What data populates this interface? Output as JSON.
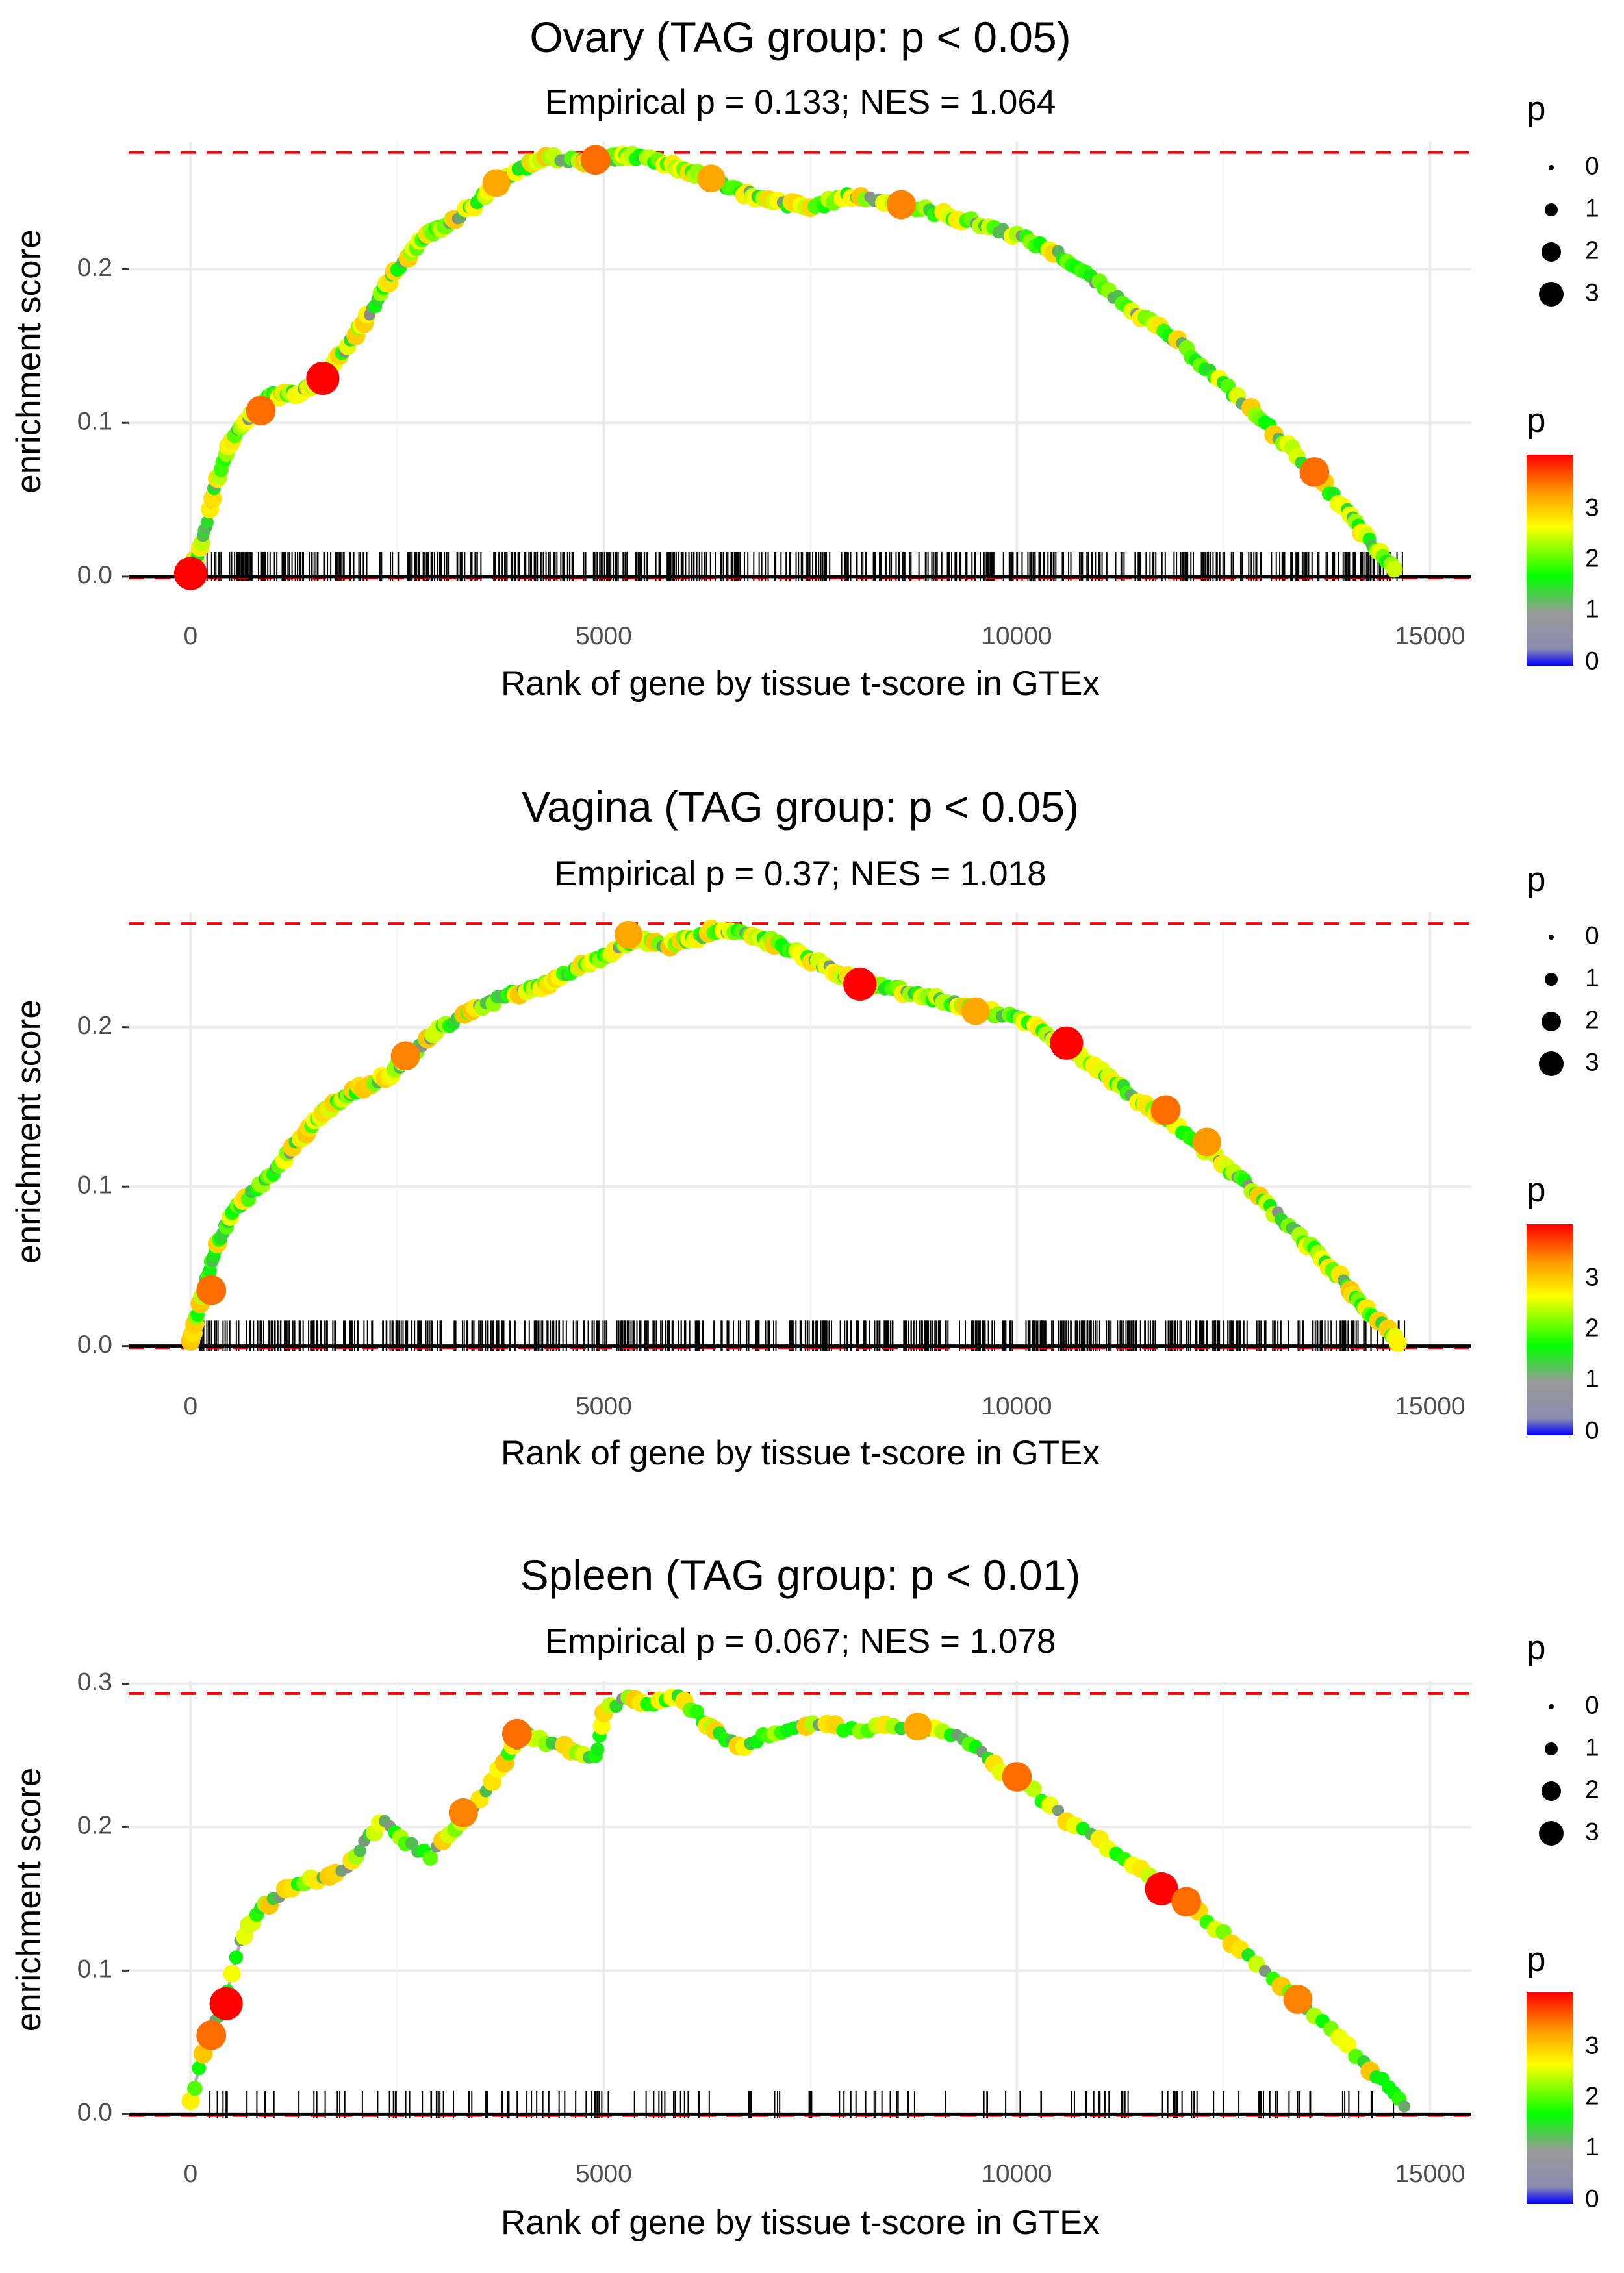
{
  "chart_data": [
    {
      "type": "line",
      "title": "Ovary (TAG group: p < 0.05)",
      "subtitle": "Empirical p = 0.133; NES = 1.064",
      "xlabel": "Rank of gene by tissue t-score in GTEx",
      "ylabel": "enrichment score",
      "xlim": [
        -750,
        15500
      ],
      "ylim": [
        -0.003,
        0.283
      ],
      "x_ticks": [
        0,
        5000,
        10000,
        15000
      ],
      "x_tick_labels": [
        "0",
        "5000",
        "10000",
        "15000"
      ],
      "y_ticks": [
        0.0,
        0.1,
        0.2
      ],
      "y_tick_labels": [
        "0.0",
        "0.1",
        "0.2"
      ],
      "max_es": 0.276,
      "x": [
        0,
        150,
        300,
        500,
        800,
        1000,
        1300,
        1600,
        1900,
        2200,
        2500,
        2800,
        3100,
        3400,
        3700,
        4000,
        4300,
        4700,
        5000,
        5300,
        5700,
        6000,
        6300,
        6700,
        7000,
        7500,
        8000,
        8500,
        9000,
        9500,
        10000,
        10500,
        11000,
        11500,
        12000,
        12500,
        13000,
        13500,
        14000,
        14300,
        14600
      ],
      "y": [
        0.002,
        0.025,
        0.06,
        0.09,
        0.11,
        0.118,
        0.12,
        0.13,
        0.15,
        0.175,
        0.2,
        0.22,
        0.23,
        0.24,
        0.255,
        0.265,
        0.274,
        0.27,
        0.271,
        0.274,
        0.27,
        0.264,
        0.258,
        0.25,
        0.244,
        0.24,
        0.248,
        0.243,
        0.237,
        0.23,
        0.222,
        0.21,
        0.19,
        0.17,
        0.15,
        0.125,
        0.1,
        0.073,
        0.042,
        0.02,
        0.004
      ],
      "highlight_points": [
        [
          0,
          0.002,
          3.9
        ],
        [
          1600,
          0.129,
          3.9
        ],
        [
          850,
          0.108,
          3.3
        ],
        [
          4900,
          0.271,
          3.3
        ],
        [
          3700,
          0.256,
          3.0
        ],
        [
          13600,
          0.068,
          3.3
        ],
        [
          8600,
          0.242,
          3.2
        ],
        [
          6300,
          0.259,
          3.0
        ]
      ],
      "rug": {
        "start": 100,
        "end": 14700,
        "count": 520
      },
      "size_legend": {
        "title": "p",
        "values": [
          "0",
          "1",
          "2",
          "3"
        ]
      },
      "color_legend": {
        "title": "p",
        "values": [
          "0",
          "1",
          "2",
          "3"
        ]
      }
    },
    {
      "type": "line",
      "title": "Vagina (TAG group: p < 0.05)",
      "subtitle": "Empirical p = 0.37; NES = 1.018",
      "xlabel": "Rank of gene by tissue t-score in GTEx",
      "ylabel": "enrichment score",
      "xlim": [
        -750,
        15500
      ],
      "ylim": [
        -0.003,
        0.272
      ],
      "x_ticks": [
        0,
        5000,
        10000,
        15000
      ],
      "x_tick_labels": [
        "0",
        "5000",
        "10000",
        "15000"
      ],
      "y_ticks": [
        0.0,
        0.1,
        0.2
      ],
      "y_tick_labels": [
        "0.0",
        "0.1",
        "0.2"
      ],
      "max_es": 0.265,
      "x": [
        0,
        150,
        300,
        500,
        800,
        1100,
        1400,
        1700,
        2000,
        2400,
        2700,
        3000,
        3400,
        3800,
        4200,
        4600,
        5000,
        5400,
        5800,
        6100,
        6400,
        6800,
        7200,
        7600,
        8000,
        8400,
        8800,
        9200,
        9600,
        10000,
        10400,
        10800,
        11200,
        11600,
        12000,
        12400,
        12800,
        13200,
        13600,
        14000,
        14300,
        14650
      ],
      "y": [
        0.003,
        0.035,
        0.06,
        0.085,
        0.098,
        0.115,
        0.135,
        0.15,
        0.16,
        0.17,
        0.185,
        0.198,
        0.21,
        0.22,
        0.225,
        0.235,
        0.245,
        0.255,
        0.252,
        0.256,
        0.262,
        0.258,
        0.25,
        0.24,
        0.23,
        0.225,
        0.22,
        0.215,
        0.21,
        0.205,
        0.195,
        0.18,
        0.165,
        0.15,
        0.135,
        0.118,
        0.1,
        0.08,
        0.06,
        0.038,
        0.018,
        0.002
      ],
      "highlight_points": [
        [
          250,
          0.035,
          3.3
        ],
        [
          8100,
          0.227,
          3.9
        ],
        [
          10600,
          0.19,
          3.9
        ],
        [
          2600,
          0.182,
          3.2
        ],
        [
          11800,
          0.148,
          3.3
        ],
        [
          12300,
          0.128,
          3.1
        ],
        [
          5300,
          0.258,
          3.0
        ],
        [
          9500,
          0.21,
          3.0
        ]
      ],
      "rug": {
        "start": 100,
        "end": 14700,
        "count": 560
      },
      "size_legend": {
        "title": "p",
        "values": [
          "0",
          "1",
          "2",
          "3"
        ]
      },
      "color_legend": {
        "title": "p",
        "values": [
          "0",
          "1",
          "2",
          "3"
        ]
      }
    },
    {
      "type": "line",
      "title": "Spleen (TAG group: p < 0.01)",
      "subtitle": "Empirical p = 0.067; NES = 1.078",
      "xlabel": "Rank of gene by tissue t-score in GTEx",
      "ylabel": "enrichment score",
      "xlim": [
        -750,
        15500
      ],
      "ylim": [
        -0.003,
        0.302
      ],
      "x_ticks": [
        0,
        5000,
        10000,
        15000
      ],
      "x_tick_labels": [
        "0",
        "5000",
        "10000",
        "15000"
      ],
      "y_ticks": [
        0.0,
        0.1,
        0.2,
        0.3
      ],
      "y_tick_labels": [
        "0.0",
        "0.1",
        "0.2",
        "0.3"
      ],
      "max_es": 0.293,
      "x": [
        0,
        200,
        400,
        600,
        800,
        1000,
        1300,
        1600,
        1900,
        2100,
        2350,
        2600,
        2900,
        3200,
        3500,
        3800,
        4000,
        4300,
        4600,
        4900,
        5000,
        5300,
        5600,
        5900,
        6200,
        6400,
        6700,
        7000,
        7300,
        7600,
        8000,
        8400,
        8800,
        9200,
        9500,
        9800,
        10200,
        10600,
        11000,
        11400,
        11800,
        12200,
        12600,
        13000,
        13400,
        13800,
        14200,
        14500,
        14750
      ],
      "y": [
        0.008,
        0.055,
        0.075,
        0.12,
        0.14,
        0.15,
        0.16,
        0.165,
        0.17,
        0.19,
        0.205,
        0.19,
        0.18,
        0.2,
        0.22,
        0.245,
        0.265,
        0.26,
        0.255,
        0.248,
        0.28,
        0.292,
        0.285,
        0.29,
        0.275,
        0.265,
        0.255,
        0.265,
        0.27,
        0.272,
        0.268,
        0.27,
        0.27,
        0.265,
        0.255,
        0.24,
        0.225,
        0.205,
        0.19,
        0.175,
        0.155,
        0.14,
        0.12,
        0.1,
        0.08,
        0.06,
        0.035,
        0.02,
        0.003
      ],
      "highlight_points": [
        [
          430,
          0.077,
          3.9
        ],
        [
          11750,
          0.157,
          3.9
        ],
        [
          3950,
          0.265,
          3.3
        ],
        [
          10000,
          0.235,
          3.3
        ],
        [
          3300,
          0.21,
          3.2
        ],
        [
          12050,
          0.148,
          3.3
        ],
        [
          13400,
          0.08,
          3.2
        ],
        [
          8800,
          0.27,
          3.0
        ],
        [
          250,
          0.055,
          3.3
        ]
      ],
      "rug": {
        "start": 100,
        "end": 14700,
        "count": 150
      },
      "size_legend": {
        "title": "p",
        "values": [
          "0",
          "1",
          "2",
          "3"
        ]
      },
      "color_legend": {
        "title": "p",
        "values": [
          "0",
          "1",
          "2",
          "3"
        ]
      }
    }
  ]
}
